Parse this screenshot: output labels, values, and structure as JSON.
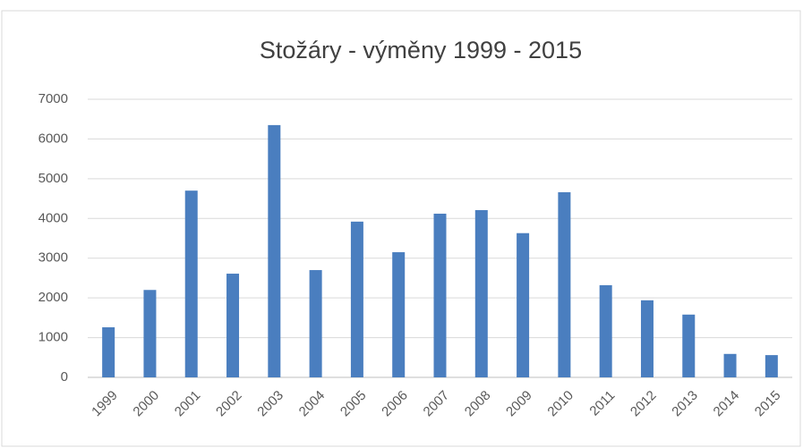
{
  "chart_data": {
    "type": "bar",
    "title": "Stožáry - výměny 1999 - 2015",
    "categories": [
      "1999",
      "2000",
      "2001",
      "2002",
      "2003",
      "2004",
      "2005",
      "2006",
      "2007",
      "2008",
      "2009",
      "2010",
      "2011",
      "2012",
      "2013",
      "2014",
      "2015"
    ],
    "values": [
      1260,
      2200,
      4700,
      2610,
      6350,
      2700,
      3920,
      3150,
      4120,
      4210,
      3630,
      4660,
      2320,
      1940,
      1580,
      590,
      560
    ],
    "color": "#4a7ebf",
    "ylim": [
      0,
      7000
    ],
    "yticks": [
      0,
      1000,
      2000,
      3000,
      4000,
      5000,
      6000,
      7000
    ],
    "grid": true
  }
}
